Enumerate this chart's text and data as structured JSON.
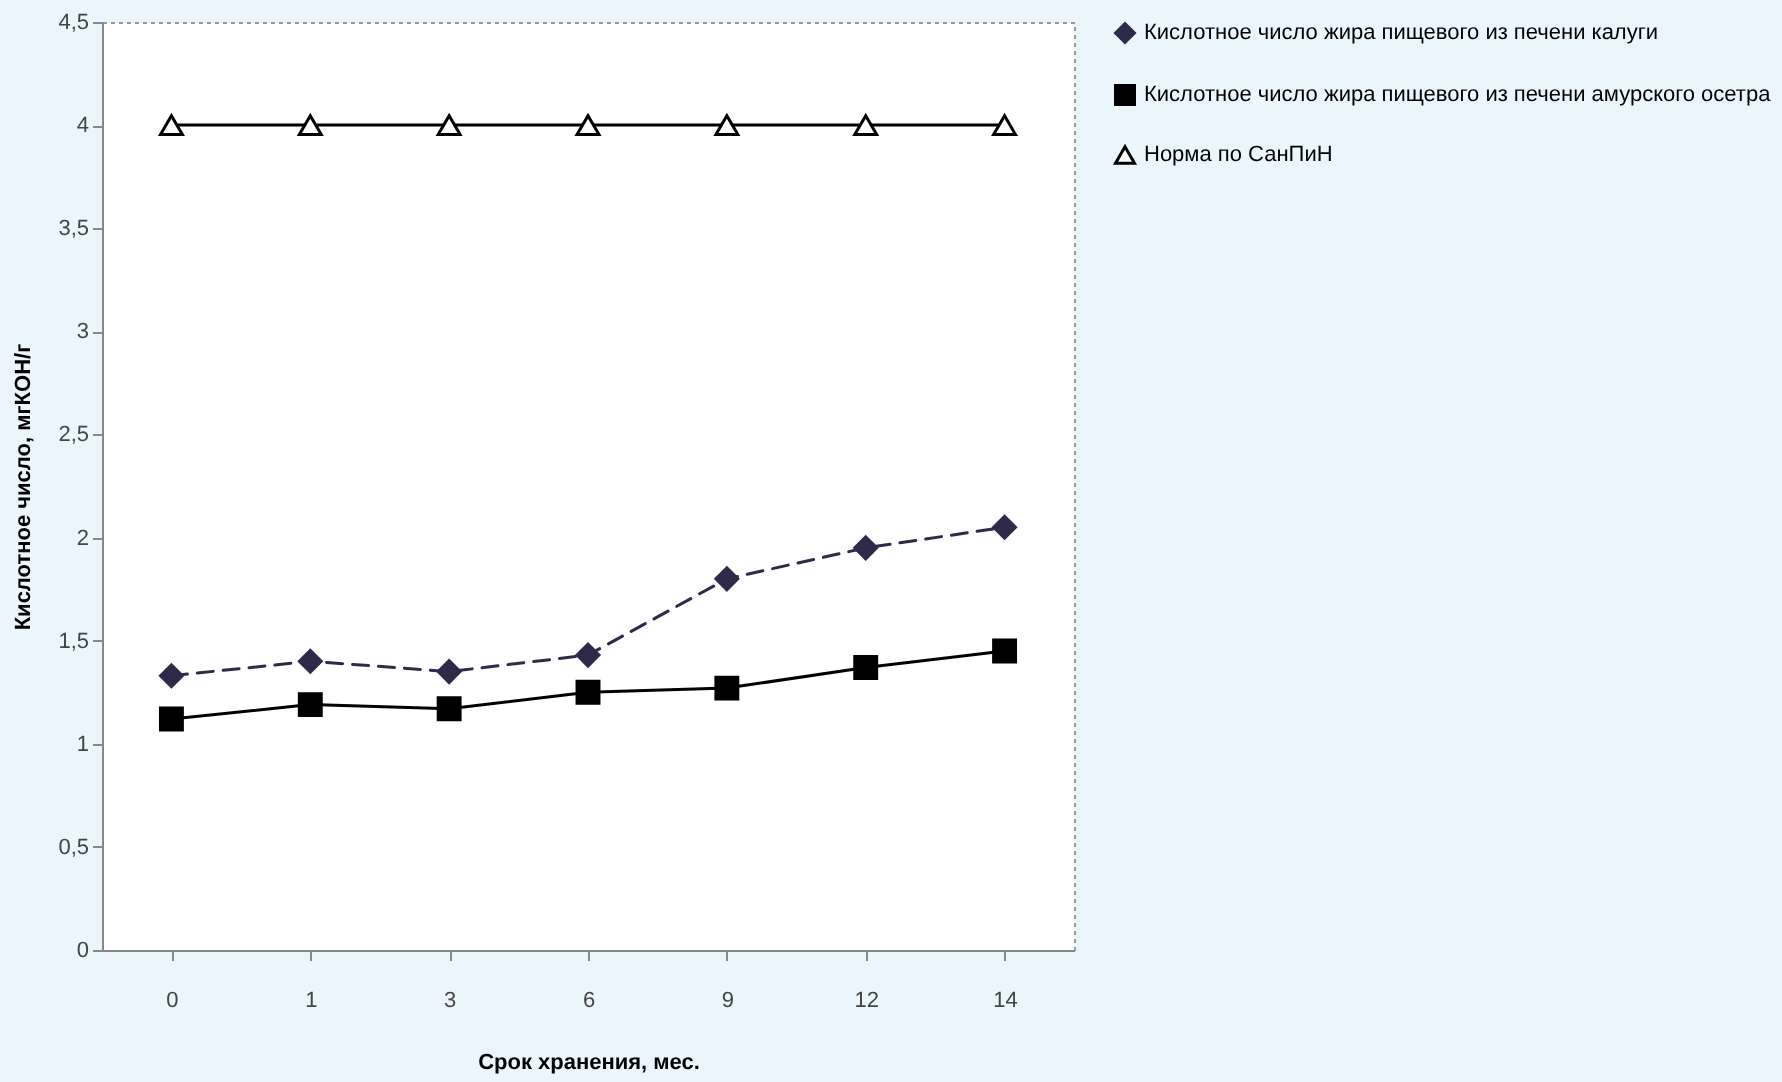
{
  "chart_data": {
    "type": "line",
    "xlabel": "Срок хранения, мес.",
    "ylabel": "Кислотное число, мгКОН/г",
    "categories": [
      "0",
      "1",
      "3",
      "6",
      "9",
      "12",
      "14"
    ],
    "series": [
      {
        "name": "Кислотное число жира пищевого из печени калуги",
        "color": "#2e2a4a",
        "marker": "diamond",
        "line_style": "dashed",
        "values": [
          1.33,
          1.4,
          1.35,
          1.43,
          1.8,
          1.95,
          2.05
        ]
      },
      {
        "name": "Кислотное число жира пищевого из печени амурского осетра",
        "color": "#000000",
        "marker": "square",
        "line_style": "solid",
        "values": [
          1.12,
          1.19,
          1.17,
          1.25,
          1.27,
          1.37,
          1.45
        ]
      },
      {
        "name": "Норма по СанПиН",
        "color": "#000000",
        "marker": "triangle",
        "line_style": "solid",
        "values": [
          4,
          4,
          4,
          4,
          4,
          4,
          4
        ]
      }
    ],
    "ylim": [
      0,
      4.5
    ],
    "yticks": [
      0,
      {
        "value": 0.5,
        "label": "0,5"
      },
      1,
      {
        "value": 1.5,
        "label": "1,5"
      },
      2,
      {
        "value": 2.5,
        "label": "2,5"
      },
      3,
      {
        "value": 3.5,
        "label": "3,5"
      },
      4,
      {
        "value": 4.5,
        "label": "4,5"
      }
    ],
    "grid": false,
    "legend": "right"
  }
}
